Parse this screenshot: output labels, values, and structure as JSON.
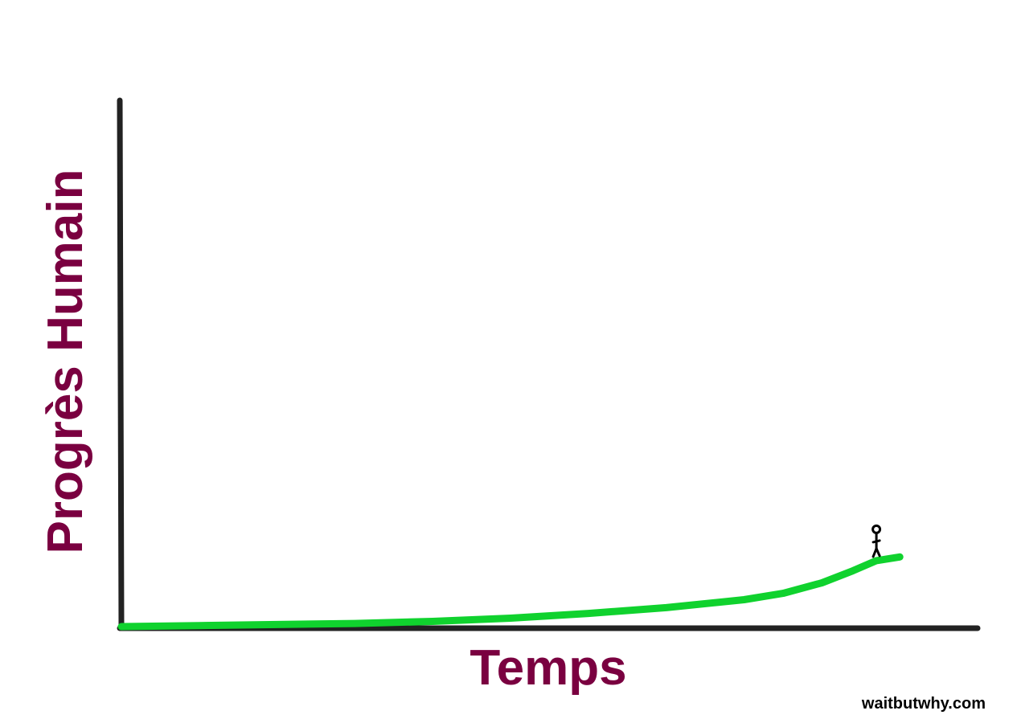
{
  "chart_data": {
    "type": "line",
    "title": "",
    "xlabel": "Temps",
    "ylabel": "Progrès Humain",
    "series": [
      {
        "values": [
          [
            0,
            0.3
          ],
          [
            10,
            0.5
          ],
          [
            20,
            0.7
          ],
          [
            30,
            0.9
          ],
          [
            40,
            1.3
          ],
          [
            50,
            1.9
          ],
          [
            60,
            2.8
          ],
          [
            70,
            3.9
          ],
          [
            80,
            5.4
          ],
          [
            85,
            6.6
          ],
          [
            90,
            8.6
          ],
          [
            94,
            10.9
          ],
          [
            97,
            12.8
          ],
          [
            100,
            13.5
          ]
        ]
      }
    ],
    "xlim": [
      0,
      110
    ],
    "ylim": [
      0,
      100
    ],
    "grid": false,
    "legend": "none",
    "annotations": [
      {
        "type": "stick-figure-icon",
        "x": 97,
        "y": 12.8
      }
    ],
    "colors": {
      "line": "#10d22e",
      "axes": "#222222",
      "label": "#7a0040"
    }
  },
  "credit": "waitbutwhy.com"
}
